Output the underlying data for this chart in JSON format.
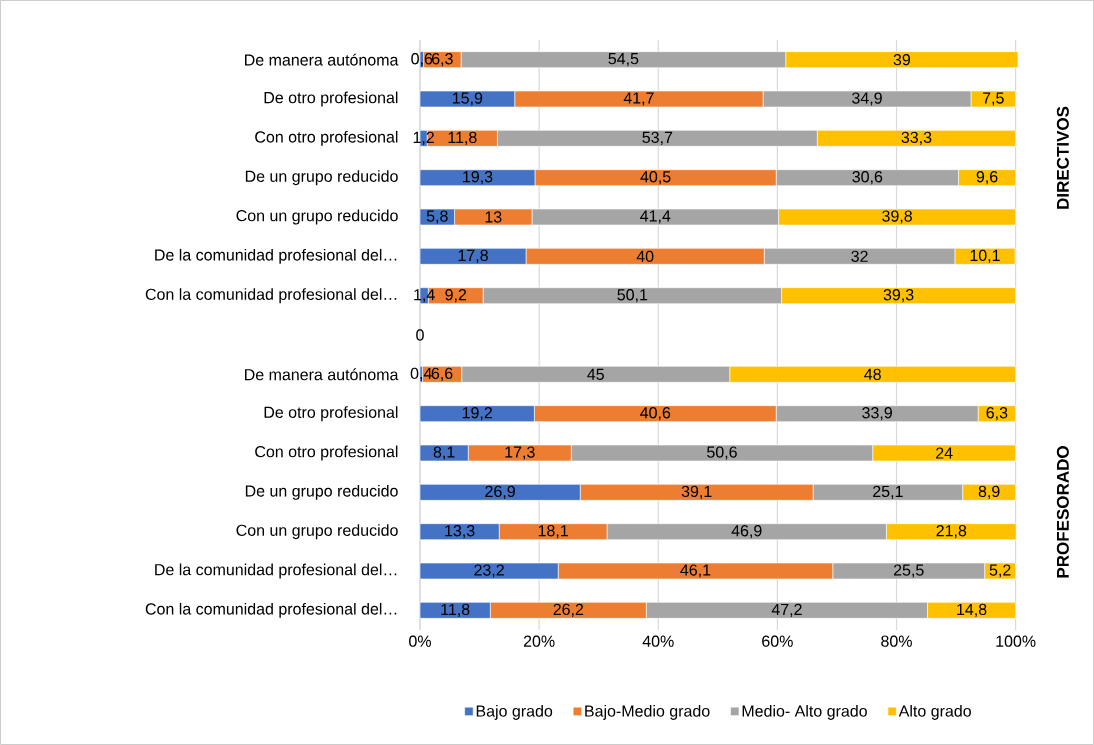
{
  "chart_data": {
    "type": "bar",
    "orientation": "horizontal",
    "stacked": true,
    "categories": [
      "De manera autónoma",
      "De otro profesional",
      "Con otro profesional",
      "De un grupo reducido",
      "Con un grupo reducido",
      "De la comunidad profesional del…",
      "Con la comunidad profesional del…",
      null,
      "De manera autónoma",
      "De otro profesional",
      "Con otro profesional",
      "De un grupo reducido",
      "Con un grupo reducido",
      "De la comunidad profesional del…",
      "Con la comunidad profesional del…"
    ],
    "series": [
      {
        "name": "Bajo grado",
        "color": "#4472c4",
        "values": [
          0.6,
          15.9,
          1.2,
          19.3,
          5.8,
          17.8,
          1.4,
          0,
          0.4,
          19.2,
          8.1,
          26.9,
          13.3,
          23.2,
          11.8
        ],
        "value_labels": [
          "0,6",
          "15,9",
          "1,2",
          "19,3",
          "5,8",
          "17,8",
          "1,4",
          "0",
          "0,4",
          "19,2",
          "8,1",
          "26,9",
          "13,3",
          "23,2",
          "11,8"
        ]
      },
      {
        "name": "Bajo-Medio grado",
        "color": "#ed7d31",
        "values": [
          6.3,
          41.7,
          11.8,
          40.5,
          13,
          40,
          9.2,
          0,
          6.6,
          40.6,
          17.3,
          39.1,
          18.1,
          46.1,
          26.2
        ],
        "value_labels": [
          "6,3",
          "41,7",
          "11,8",
          "40,5",
          "13",
          "40",
          "9,2",
          null,
          "6,6",
          "40,6",
          "17,3",
          "39,1",
          "18,1",
          "46,1",
          "26,2"
        ]
      },
      {
        "name": "Medio- Alto grado",
        "color": "#a5a5a5",
        "values": [
          54.5,
          34.9,
          53.7,
          30.6,
          41.4,
          32,
          50.1,
          0,
          45,
          33.9,
          50.6,
          25.1,
          46.9,
          25.5,
          47.2
        ],
        "value_labels": [
          "54,5",
          "34,9",
          "53,7",
          "30,6",
          "41,4",
          "32",
          "50,1",
          null,
          "45",
          "33,9",
          "50,6",
          "25,1",
          "46,9",
          "25,5",
          "47,2"
        ]
      },
      {
        "name": "Alto grado",
        "color": "#ffc000",
        "values": [
          39,
          7.5,
          33.3,
          9.6,
          39.8,
          10.1,
          39.3,
          0,
          48,
          6.3,
          24,
          8.9,
          21.8,
          5.2,
          14.8
        ],
        "value_labels": [
          "39",
          "7,5",
          "33,3",
          "9,6",
          "39,8",
          "10,1",
          "39,3",
          null,
          "48",
          "6,3",
          "24",
          "8,9",
          "21,8",
          "5,2",
          "14,8"
        ]
      }
    ],
    "xlim": [
      0,
      100.4
    ],
    "xticks": [
      {
        "value": 0,
        "label": "0%"
      },
      {
        "value": 20,
        "label": "20%"
      },
      {
        "value": 40,
        "label": "40%"
      },
      {
        "value": 60,
        "label": "60%"
      },
      {
        "value": 80,
        "label": "80%"
      },
      {
        "value": 100,
        "label": "100%"
      }
    ],
    "grid": "x",
    "legend": "bottom",
    "annotations": [
      "DIRECTIVOS",
      "PROFESORADO"
    ]
  }
}
